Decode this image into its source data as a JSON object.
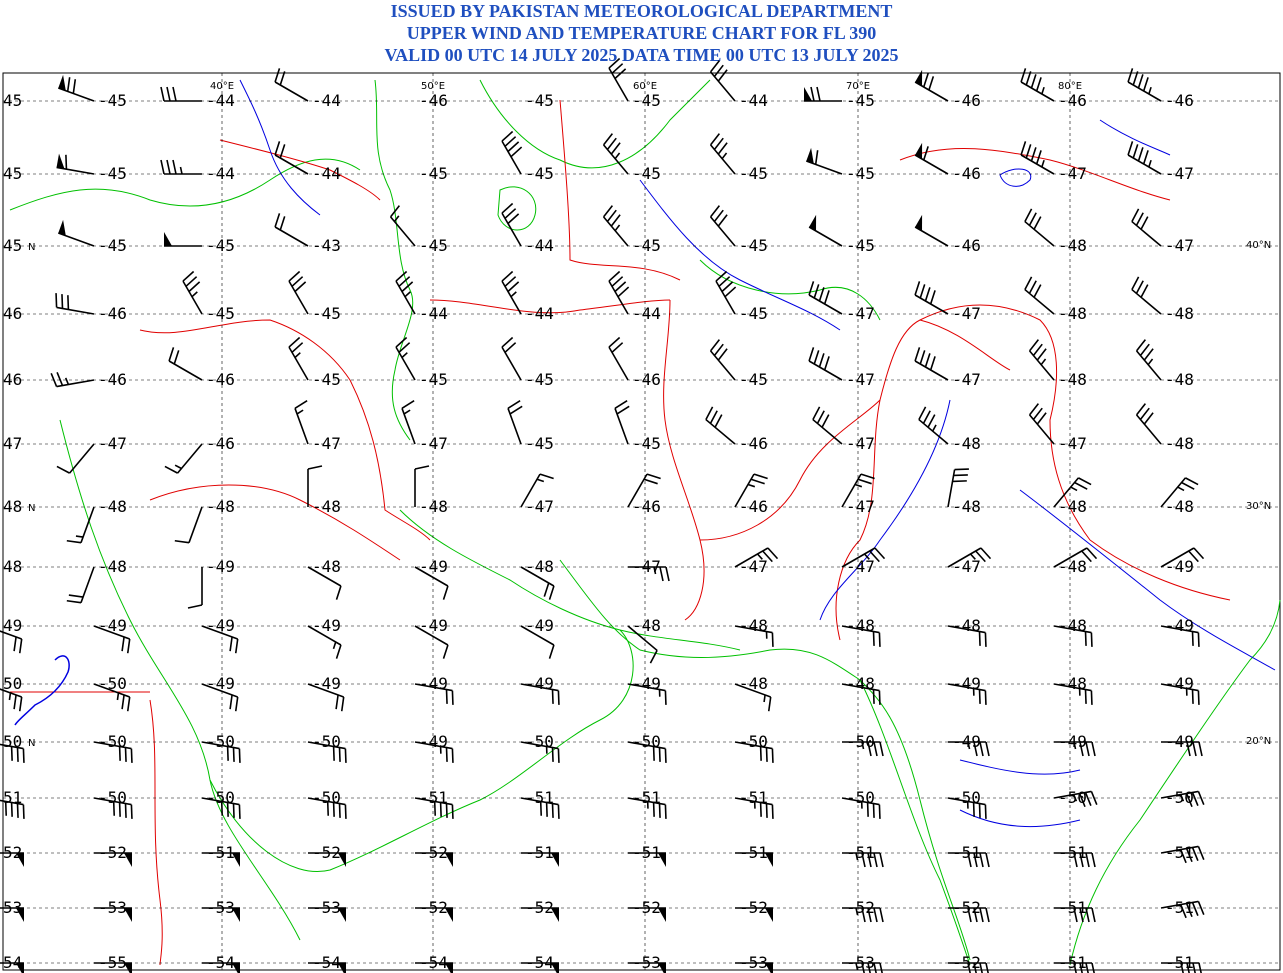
{
  "header": {
    "line1": "ISSUED BY PAKISTAN METEOROLOGICAL DEPARTMENT",
    "line2": "UPPER WIND AND TEMPERATURE CHART FOR FL 390",
    "line3": "VALID 00 UTC 14 JULY 2025 DATA TIME 00 UTC 13 JULY 2025"
  },
  "colors": {
    "title": "#1f4fbf",
    "coastline": "#00c000",
    "border": "#e00000",
    "river": "#0000e0",
    "barb": "#000000",
    "grid": "#000000"
  },
  "lon_labels": [
    "40°E",
    "50°E",
    "60°E",
    "70°E",
    "80°E"
  ],
  "lat_labels": [
    "40°N",
    "30°N",
    "20°N"
  ],
  "row_lat_tags": [
    {
      "row": 2,
      "text": "N"
    },
    {
      "row": 6,
      "text": "N"
    },
    {
      "row": 10,
      "text": "N"
    }
  ],
  "temperatures": [
    [
      "45",
      "-45",
      "-44",
      "-44",
      "-46",
      "-45",
      "-45",
      "-44",
      "-45",
      "-46",
      "-46",
      "-46"
    ],
    [
      "45",
      "-45",
      "-44",
      "-44",
      "-45",
      "-45",
      "-45",
      "-45",
      "-45",
      "-46",
      "-47",
      "-47"
    ],
    [
      "45",
      "-45",
      "-45",
      "-43",
      "-45",
      "-44",
      "-45",
      "-45",
      "-45",
      "-46",
      "-48",
      "-47"
    ],
    [
      "46",
      "-46",
      "-45",
      "-45",
      "-44",
      "-44",
      "-44",
      "-45",
      "-47",
      "-47",
      "-48",
      "-48"
    ],
    [
      "46",
      "-46",
      "-46",
      "-45",
      "-45",
      "-45",
      "-46",
      "-45",
      "-47",
      "-47",
      "-48",
      "-48"
    ],
    [
      "47",
      "-47",
      "-46",
      "-47",
      "-47",
      "-45",
      "-45",
      "-46",
      "-47",
      "-48",
      "-47",
      "-48"
    ],
    [
      "48",
      "-48",
      "-48",
      "-48",
      "-48",
      "-47",
      "-46",
      "-46",
      "-47",
      "-48",
      "-48",
      "-48"
    ],
    [
      "48",
      "-48",
      "-49",
      "-48",
      "-49",
      "-48",
      "-47",
      "-47",
      "-47",
      "-47",
      "-48",
      "-49"
    ],
    [
      "49",
      "-49",
      "-49",
      "-49",
      "-49",
      "-49",
      "-48",
      "-48",
      "-48",
      "-48",
      "-48",
      "-49"
    ],
    [
      "50",
      "-50",
      "-49",
      "-49",
      "-49",
      "-49",
      "-49",
      "-48",
      "-48",
      "-49",
      "-48",
      "-49"
    ],
    [
      "50",
      "-50",
      "-50",
      "-50",
      "-49",
      "-50",
      "-50",
      "-50",
      "-50",
      "-49",
      "-49",
      "-49"
    ],
    [
      "51",
      "-50",
      "-50",
      "-50",
      "-51",
      "-51",
      "-51",
      "-51",
      "-50",
      "-50",
      "-50",
      "-50"
    ],
    [
      "52",
      "-52",
      "-51",
      "-52",
      "-52",
      "-51",
      "-51",
      "-51",
      "-51",
      "-51",
      "-51",
      "-51"
    ],
    [
      "53",
      "-53",
      "-53",
      "-53",
      "-52",
      "-52",
      "-52",
      "-52",
      "-52",
      "-52",
      "-51",
      "-51"
    ],
    [
      "54",
      "-55",
      "-54",
      "-54",
      "-54",
      "-54",
      "-53",
      "-53",
      "-53",
      "-52",
      "-51",
      "-51"
    ]
  ],
  "winds_kt": [
    [
      70,
      70,
      30,
      20,
      0,
      0,
      30,
      30,
      70,
      70,
      45,
      45
    ],
    [
      60,
      60,
      35,
      20,
      0,
      40,
      35,
      35,
      60,
      60,
      45,
      45
    ],
    [
      50,
      50,
      50,
      20,
      15,
      30,
      35,
      30,
      50,
      50,
      30,
      30
    ],
    [
      30,
      30,
      35,
      30,
      35,
      35,
      40,
      40,
      40,
      40,
      30,
      30
    ],
    [
      25,
      25,
      20,
      25,
      25,
      20,
      20,
      30,
      40,
      40,
      35,
      35
    ],
    [
      10,
      10,
      15,
      15,
      15,
      20,
      20,
      30,
      30,
      35,
      30,
      30
    ],
    [
      15,
      15,
      10,
      10,
      10,
      15,
      20,
      25,
      25,
      30,
      25,
      25
    ],
    [
      20,
      20,
      10,
      10,
      10,
      20,
      25,
      25,
      25,
      25,
      20,
      20
    ],
    [
      20,
      20,
      20,
      15,
      10,
      10,
      10,
      15,
      20,
      20,
      20,
      20
    ],
    [
      25,
      25,
      20,
      20,
      20,
      20,
      15,
      15,
      20,
      25,
      25,
      25
    ],
    [
      30,
      30,
      30,
      30,
      25,
      25,
      30,
      30,
      35,
      35,
      35,
      30
    ],
    [
      40,
      40,
      40,
      40,
      40,
      40,
      35,
      35,
      35,
      35,
      35,
      35
    ],
    [
      50,
      50,
      50,
      50,
      50,
      50,
      50,
      50,
      45,
      40,
      40,
      40
    ],
    [
      50,
      50,
      50,
      50,
      50,
      50,
      50,
      50,
      45,
      40,
      40,
      40
    ],
    [
      50,
      50,
      50,
      50,
      50,
      50,
      50,
      50,
      45,
      40,
      40,
      40
    ]
  ],
  "winds_dir": [
    [
      290,
      290,
      270,
      300,
      320,
      330,
      330,
      320,
      270,
      300,
      300,
      300
    ],
    [
      280,
      280,
      270,
      300,
      320,
      330,
      320,
      320,
      290,
      300,
      300,
      300
    ],
    [
      290,
      290,
      270,
      300,
      320,
      330,
      320,
      320,
      300,
      300,
      310,
      310
    ],
    [
      280,
      280,
      330,
      330,
      330,
      330,
      330,
      330,
      300,
      300,
      310,
      310
    ],
    [
      260,
      260,
      300,
      330,
      330,
      330,
      330,
      320,
      300,
      300,
      320,
      320
    ],
    [
      220,
      220,
      220,
      340,
      340,
      340,
      340,
      310,
      310,
      310,
      320,
      320
    ],
    [
      200,
      200,
      200,
      360,
      360,
      30,
      30,
      30,
      30,
      10,
      40,
      40
    ],
    [
      200,
      200,
      180,
      120,
      120,
      120,
      90,
      60,
      60,
      60,
      60,
      60
    ],
    [
      110,
      110,
      110,
      120,
      120,
      120,
      130,
      100,
      100,
      100,
      100,
      100
    ],
    [
      110,
      110,
      110,
      110,
      100,
      100,
      100,
      110,
      100,
      100,
      100,
      100
    ],
    [
      100,
      100,
      100,
      100,
      100,
      100,
      100,
      100,
      90,
      90,
      90,
      90
    ],
    [
      100,
      100,
      100,
      100,
      100,
      100,
      100,
      100,
      100,
      100,
      80,
      80
    ],
    [
      90,
      90,
      90,
      90,
      90,
      90,
      90,
      90,
      90,
      90,
      90,
      80
    ],
    [
      90,
      90,
      90,
      90,
      90,
      90,
      90,
      90,
      90,
      90,
      90,
      80
    ],
    [
      90,
      90,
      90,
      90,
      90,
      90,
      90,
      90,
      90,
      90,
      90,
      90
    ]
  ]
}
